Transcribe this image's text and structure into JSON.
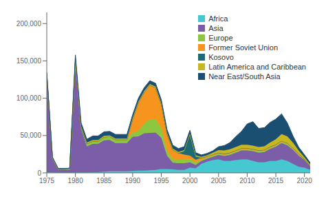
{
  "chart_data": {
    "type": "area",
    "stacked": true,
    "grid": false,
    "legend": "upper right",
    "x": [
      1975,
      1976,
      1977,
      1978,
      1979,
      1980,
      1981,
      1982,
      1983,
      1984,
      1985,
      1986,
      1987,
      1988,
      1989,
      1990,
      1991,
      1992,
      1993,
      1994,
      1995,
      1996,
      1997,
      1998,
      1999,
      2000,
      2001,
      2002,
      2003,
      2004,
      2005,
      2006,
      2007,
      2008,
      2009,
      2010,
      2011,
      2012,
      2013,
      2014,
      2015,
      2016,
      2017,
      2018,
      2019,
      2020,
      2021
    ],
    "xlim": [
      1975,
      2021
    ],
    "xticks": [
      1975,
      1980,
      1985,
      1990,
      1995,
      2000,
      2005,
      2010,
      2015,
      2020
    ],
    "ylim": [
      0,
      215000
    ],
    "yticks": [
      0,
      {
        "value": 50000,
        "label": "50,000"
      },
      {
        "value": 100000,
        "label": "100,000"
      },
      {
        "value": 150000,
        "label": "150,000"
      },
      {
        "value": 200000,
        "label": "200,000"
      }
    ],
    "series": [
      {
        "name": "Africa",
        "color": "#45C8D0",
        "values": [
          1000,
          500,
          300,
          300,
          300,
          500,
          500,
          500,
          800,
          1000,
          1500,
          2000,
          2000,
          2000,
          2000,
          2500,
          3000,
          3000,
          3500,
          4000,
          5000,
          5000,
          4500,
          4000,
          4000,
          7000,
          6000,
          12000,
          15000,
          17000,
          18000,
          16000,
          16000,
          17000,
          18000,
          18000,
          16000,
          14000,
          14000,
          16000,
          16000,
          18000,
          16000,
          12000,
          8000,
          7000,
          4000
        ]
      },
      {
        "name": "Asia",
        "color": "#7B5EA7",
        "values": [
          130000,
          18000,
          4000,
          4000,
          4000,
          150000,
          58000,
          35000,
          38000,
          38000,
          42000,
          42000,
          38000,
          38000,
          38000,
          46000,
          46000,
          50000,
          50000,
          50000,
          42000,
          18000,
          9000,
          9000,
          9000,
          7000,
          4500,
          4000,
          4000,
          4500,
          6000,
          6500,
          8000,
          10000,
          12000,
          12000,
          13000,
          13000,
          14000,
          16000,
          19000,
          22000,
          21000,
          19000,
          15000,
          10000,
          5000
        ]
      },
      {
        "name": "Europe",
        "color": "#8DC63F",
        "values": [
          1500,
          800,
          400,
          400,
          400,
          1500,
          2500,
          3500,
          3500,
          3500,
          4500,
          4500,
          4500,
          4500,
          4500,
          5500,
          7000,
          13000,
          18000,
          18000,
          13000,
          7000,
          4500,
          4500,
          4500,
          4500,
          3500,
          1500,
          1500,
          1500,
          1500,
          1500,
          1500,
          1500,
          1500,
          1500,
          1500,
          1500,
          1500,
          1500,
          1500,
          1500,
          1500,
          1500,
          1500,
          800,
          400
        ]
      },
      {
        "name": "Former Soviet Union",
        "color": "#F7941D",
        "values": [
          0,
          0,
          0,
          0,
          0,
          0,
          0,
          0,
          0,
          0,
          0,
          0,
          0,
          0,
          0,
          18000,
          38000,
          42000,
          46000,
          42000,
          32000,
          22000,
          13000,
          9000,
          7000,
          4500,
          3500,
          2500,
          1500,
          1500,
          1500,
          1500,
          1500,
          1500,
          1500,
          1500,
          1500,
          1500,
          1500,
          1500,
          1500,
          1500,
          1500,
          800,
          800,
          400,
          200
        ]
      },
      {
        "name": "Kosovo",
        "color": "#1F6B75",
        "values": [
          0,
          0,
          0,
          0,
          0,
          0,
          0,
          0,
          0,
          0,
          0,
          0,
          0,
          0,
          0,
          0,
          0,
          0,
          0,
          0,
          0,
          0,
          0,
          0,
          4500,
          28000,
          4500,
          0,
          0,
          0,
          0,
          0,
          0,
          0,
          0,
          0,
          0,
          0,
          0,
          0,
          0,
          0,
          0,
          0,
          0,
          0,
          0
        ]
      },
      {
        "name": "Latin America and Caribbean",
        "color": "#C8B820",
        "values": [
          800,
          800,
          400,
          400,
          800,
          1500,
          1500,
          1500,
          1500,
          1500,
          1500,
          1500,
          1500,
          1500,
          1500,
          1500,
          1500,
          1500,
          1500,
          1500,
          1500,
          1500,
          1500,
          1500,
          1500,
          1500,
          1500,
          1500,
          1500,
          2500,
          3500,
          4500,
          4500,
          4500,
          4500,
          4500,
          4500,
          4500,
          4500,
          5500,
          7000,
          9000,
          9000,
          7000,
          4500,
          2500,
          1500
        ]
      },
      {
        "name": "Near East/South Asia",
        "color": "#1B4F72",
        "values": [
          1500,
          1000,
          800,
          800,
          800,
          4500,
          4500,
          4500,
          5500,
          5500,
          5500,
          5500,
          5500,
          5500,
          5500,
          4500,
          4500,
          4500,
          4500,
          4500,
          4500,
          4500,
          4500,
          4500,
          4500,
          4500,
          3500,
          2500,
          2500,
          2500,
          4500,
          6500,
          9000,
          14000,
          18000,
          28000,
          32000,
          25000,
          25000,
          27000,
          27000,
          27000,
          18000,
          9000,
          4500,
          3500,
          2500
        ]
      }
    ]
  }
}
